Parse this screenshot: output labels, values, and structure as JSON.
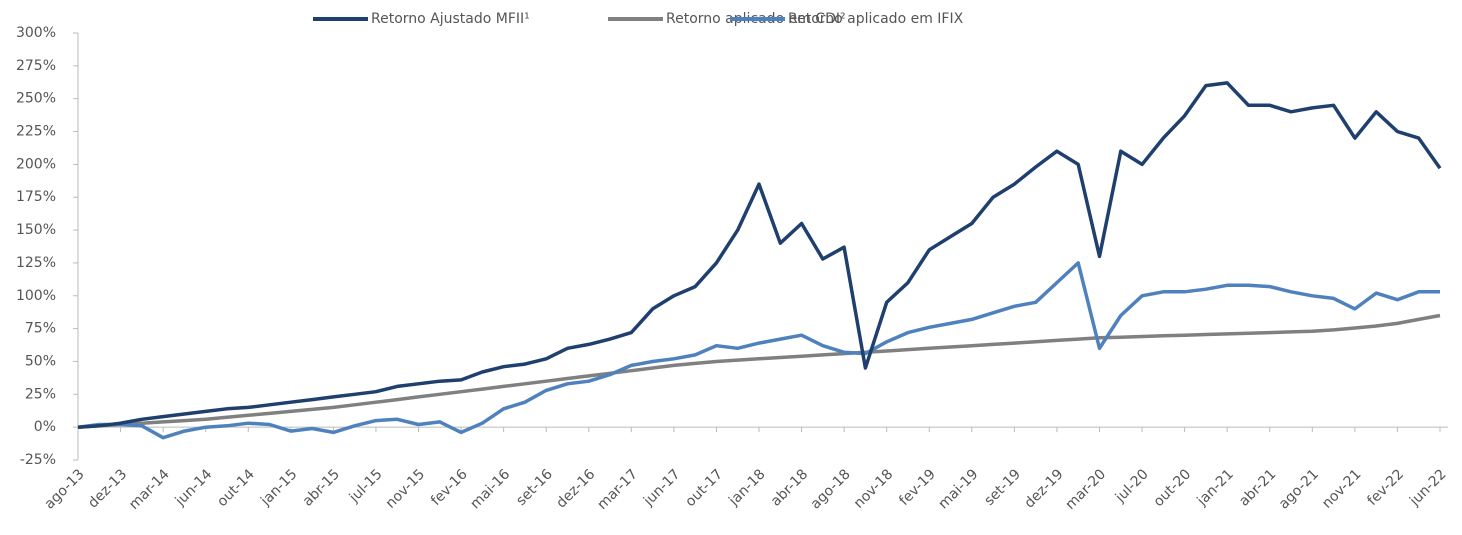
{
  "chart_data": {
    "type": "line",
    "categories": [
      "ago-13",
      null,
      "dez-13",
      null,
      "mar-14",
      null,
      "jun-14",
      null,
      "out-14",
      null,
      "jan-15",
      null,
      "abr-15",
      null,
      "jul-15",
      null,
      "nov-15",
      null,
      "fev-16",
      null,
      "mai-16",
      null,
      "set-16",
      null,
      "dez-16",
      null,
      "mar-17",
      null,
      "jun-17",
      null,
      "out-17",
      null,
      "jan-18",
      null,
      "abr-18",
      null,
      "ago-18",
      null,
      "nov-18",
      null,
      "fev-19",
      null,
      "mai-19",
      null,
      "set-19",
      null,
      "dez-19",
      null,
      "mar-20",
      null,
      "jul-20",
      null,
      "out-20",
      null,
      "jan-21",
      null,
      "abr-21",
      null,
      "ago-21",
      null,
      "nov-21",
      null,
      "fev-22",
      null,
      "jun-22"
    ],
    "series": [
      {
        "name": "Retorno Ajustado MFII¹",
        "color": "#1f3f6e",
        "values": [
          0,
          1,
          3,
          6,
          8,
          10,
          12,
          14,
          15,
          17,
          19,
          21,
          23,
          25,
          27,
          31,
          33,
          35,
          36,
          42,
          46,
          48,
          52,
          60,
          63,
          67,
          72,
          90,
          100,
          107,
          125,
          150,
          185,
          140,
          155,
          128,
          137,
          45,
          95,
          110,
          135,
          145,
          155,
          175,
          185,
          198,
          210,
          200,
          130,
          210,
          200,
          220,
          237,
          260,
          262,
          245,
          245,
          240,
          243,
          245,
          220,
          240,
          225,
          220,
          197
        ]
      },
      {
        "name": "Retorno aplicado em CDI²",
        "color": "#808080",
        "values": [
          0,
          1,
          2,
          3,
          4,
          5,
          6,
          7.5,
          9,
          10.5,
          12,
          13.5,
          15,
          17,
          19,
          21,
          23,
          25,
          27,
          29,
          31,
          33,
          35,
          37,
          39,
          41,
          43,
          45,
          47,
          48.5,
          50,
          51,
          52,
          53,
          54,
          55,
          56,
          57,
          58,
          59,
          60,
          61,
          62,
          63,
          64,
          65,
          66,
          67,
          68,
          68.5,
          69,
          69.5,
          70,
          70.5,
          71,
          71.5,
          72,
          72.5,
          73,
          74,
          75.5,
          77,
          79,
          82,
          85
        ]
      },
      {
        "name": "Retorno aplicado em IFIX",
        "color": "#4f81bd",
        "values": [
          0,
          2,
          2,
          1,
          -8,
          -3,
          0,
          1,
          3,
          2,
          -3,
          -1,
          -4,
          1,
          5,
          6,
          2,
          4,
          -4,
          3,
          14,
          19,
          28,
          33,
          35,
          40,
          47,
          50,
          52,
          55,
          62,
          60,
          64,
          67,
          70,
          62,
          57,
          56,
          65,
          72,
          76,
          79,
          82,
          87,
          92,
          95,
          110,
          125,
          60,
          85,
          100,
          103,
          103,
          105,
          108,
          108,
          107,
          103,
          100,
          98,
          90,
          102,
          97,
          103,
          103
        ]
      }
    ],
    "ylim": [
      -25,
      300
    ],
    "yticks": [
      {
        "value": -25,
        "label": "-25%"
      },
      {
        "value": 0,
        "label": "0%"
      },
      {
        "value": 25,
        "label": "25%"
      },
      {
        "value": 50,
        "label": "50%"
      },
      {
        "value": 75,
        "label": "75%"
      },
      {
        "value": 100,
        "label": "100%"
      },
      {
        "value": 125,
        "label": "125%"
      },
      {
        "value": 150,
        "label": "150%"
      },
      {
        "value": 175,
        "label": "175%"
      },
      {
        "value": 200,
        "label": "200%"
      },
      {
        "value": 225,
        "label": "225%"
      },
      {
        "value": 250,
        "label": "250%"
      },
      {
        "value": 275,
        "label": "275%"
      },
      {
        "value": 300,
        "label": "300%"
      }
    ],
    "grid": false,
    "legend": "top"
  }
}
